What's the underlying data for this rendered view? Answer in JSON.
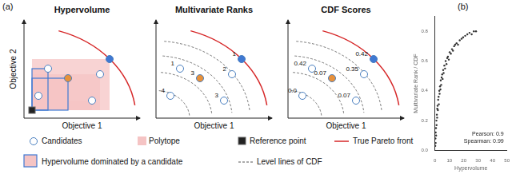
{
  "panel_labels": [
    "(a)",
    "(b)"
  ],
  "diagrams": [
    {
      "title": "Hypervolume"
    },
    {
      "title": "Multivariate Ranks",
      "point_labels": [
        "1",
        "1",
        "3",
        "2",
        "3",
        "4"
      ]
    },
    {
      "title": "CDF Scores",
      "point_labels": [
        "0.42",
        "0.42",
        "0.07",
        "0.35",
        "0.07",
        "0.0"
      ]
    }
  ],
  "x_label": "Objective 1",
  "y_label": "Objective 2",
  "legend": [
    {
      "symbol": "candidate",
      "label": "Candidates"
    },
    {
      "symbol": "polytope",
      "label": "Polytope"
    },
    {
      "symbol": "reference",
      "label": "Reference point"
    },
    {
      "symbol": "front",
      "label": "True Pareto front"
    },
    {
      "symbol": "dominated",
      "label": "Hypervolume dominated by a candidate"
    },
    {
      "symbol": "level",
      "label": "Level lines of CDF"
    }
  ],
  "chart_data": {
    "type": "scatter",
    "x_label": "Hypervolume",
    "y_label": "Multivariate Rank / CDF",
    "xlim": [
      0,
      50
    ],
    "xticks": [
      0,
      10,
      20,
      30,
      40,
      50
    ],
    "ylim": [
      0,
      0.9
    ],
    "yticks": [
      {
        "value": 0,
        "label": "0.0"
      },
      0.2,
      0.4,
      0.6,
      0.8
    ],
    "grid": false,
    "color": "#333333",
    "annotations": [
      "Pearson: 0.9",
      "Spearman: 0.99"
    ],
    "x": [
      0.2,
      0.3,
      0.5,
      0.5,
      0.7,
      0.8,
      1.0,
      1.1,
      1.3,
      1.5,
      1.6,
      1.8,
      2.0,
      2.2,
      2.5,
      2.7,
      3.0,
      3.2,
      3.5,
      3.8,
      4.0,
      4.3,
      4.6,
      5.0,
      5.3,
      5.7,
      6.0,
      6.5,
      7.0,
      7.4,
      8.0,
      8.5,
      9.0,
      9.6,
      10.2,
      11.0,
      11.8,
      12.5,
      13.3,
      14.0,
      15.0,
      16.0,
      17.2,
      18.5,
      19.6,
      21.0,
      22.5,
      24.0,
      25.5,
      27.0,
      28.5
    ],
    "values": [
      0.03,
      0.08,
      0.05,
      0.12,
      0.15,
      0.1,
      0.2,
      0.17,
      0.24,
      0.22,
      0.28,
      0.3,
      0.27,
      0.34,
      0.36,
      0.31,
      0.4,
      0.38,
      0.43,
      0.41,
      0.47,
      0.44,
      0.49,
      0.51,
      0.48,
      0.54,
      0.52,
      0.57,
      0.55,
      0.6,
      0.58,
      0.62,
      0.63,
      0.61,
      0.66,
      0.65,
      0.68,
      0.67,
      0.7,
      0.71,
      0.72,
      0.71,
      0.74,
      0.75,
      0.76,
      0.77,
      0.78,
      0.79,
      0.78,
      0.8,
      0.8
    ]
  }
}
